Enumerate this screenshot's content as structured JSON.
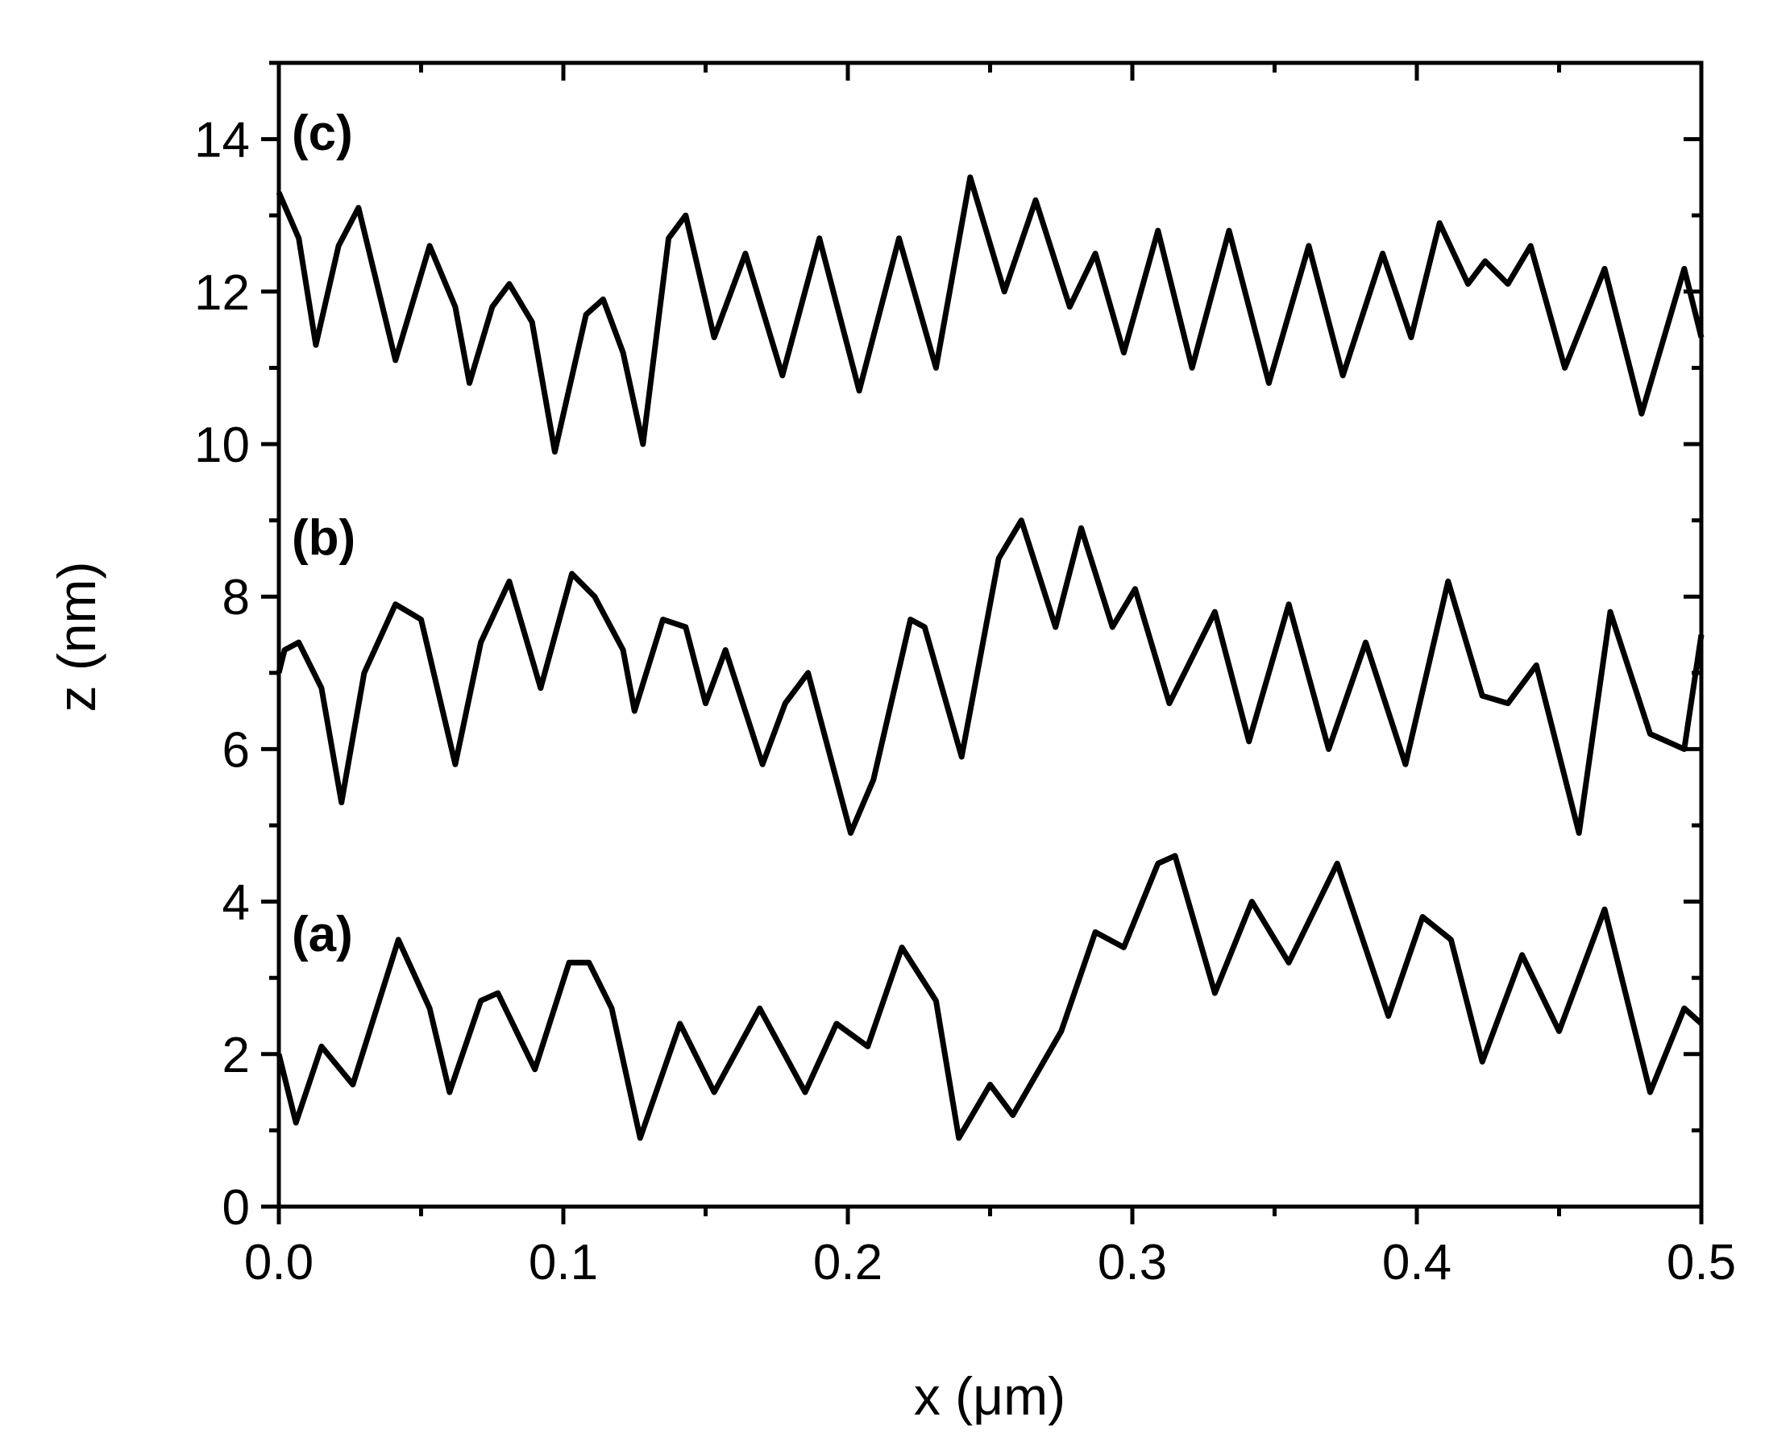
{
  "chart_data": {
    "type": "line",
    "xlabel": "x (μm)",
    "ylabel": "z (nm)",
    "xlim": [
      0,
      0.5
    ],
    "ylim": [
      0,
      15
    ],
    "xticks": [
      {
        "value": 0,
        "label": "0.0"
      },
      0.1,
      0.2,
      0.3,
      0.4,
      0.5
    ],
    "yticks": [
      0,
      2,
      4,
      6,
      8,
      10,
      12,
      14
    ],
    "xminorticks": [
      0.05,
      0.15,
      0.25,
      0.35,
      0.45
    ],
    "yminorticks": [
      1,
      3,
      5,
      7,
      9,
      11,
      13,
      15
    ],
    "series": [
      {
        "name": "(a)",
        "color": "#000000",
        "x": [
          0,
          0.006,
          0.015,
          0.026,
          0.042,
          0.053,
          0.06,
          0.071,
          0.077,
          0.09,
          0.102,
          0.109,
          0.117,
          0.127,
          0.141,
          0.153,
          0.169,
          0.185,
          0.196,
          0.207,
          0.219,
          0.231,
          0.239,
          0.25,
          0.258,
          0.275,
          0.287,
          0.297,
          0.309,
          0.315,
          0.329,
          0.342,
          0.355,
          0.372,
          0.39,
          0.402,
          0.412,
          0.423,
          0.437,
          0.45,
          0.466,
          0.482,
          0.494,
          0.5
        ],
        "values": [
          2.0,
          1.1,
          2.1,
          1.6,
          3.5,
          2.6,
          1.5,
          2.7,
          2.8,
          1.8,
          3.2,
          3.2,
          2.6,
          0.9,
          2.4,
          1.5,
          2.6,
          1.5,
          2.4,
          2.1,
          3.4,
          2.7,
          0.9,
          1.6,
          1.2,
          2.3,
          3.6,
          3.4,
          4.5,
          4.6,
          2.8,
          4.0,
          3.2,
          4.5,
          2.5,
          3.8,
          3.5,
          1.9,
          3.3,
          2.3,
          3.9,
          1.5,
          2.6,
          2.4
        ]
      },
      {
        "name": "(b)",
        "color": "#000000",
        "x": [
          0,
          0.002,
          0.007,
          0.015,
          0.022,
          0.03,
          0.041,
          0.05,
          0.062,
          0.071,
          0.081,
          0.092,
          0.103,
          0.111,
          0.121,
          0.125,
          0.135,
          0.143,
          0.15,
          0.157,
          0.17,
          0.178,
          0.186,
          0.201,
          0.209,
          0.222,
          0.227,
          0.24,
          0.253,
          0.261,
          0.273,
          0.282,
          0.293,
          0.301,
          0.313,
          0.329,
          0.341,
          0.355,
          0.369,
          0.382,
          0.396,
          0.411,
          0.423,
          0.432,
          0.442,
          0.457,
          0.468,
          0.482,
          0.494,
          0.5
        ],
        "values": [
          7.0,
          7.3,
          7.4,
          6.8,
          5.3,
          7.0,
          7.9,
          7.7,
          5.8,
          7.4,
          8.2,
          6.8,
          8.3,
          8.0,
          7.3,
          6.5,
          7.7,
          7.6,
          6.6,
          7.3,
          5.8,
          6.6,
          7.0,
          4.9,
          5.6,
          7.7,
          7.6,
          5.9,
          8.5,
          9.0,
          7.6,
          8.9,
          7.6,
          8.1,
          6.6,
          7.8,
          6.1,
          7.9,
          6.0,
          7.4,
          5.8,
          8.2,
          6.7,
          6.6,
          7.1,
          4.9,
          7.8,
          6.2,
          6.0,
          7.5
        ]
      },
      {
        "name": "(c)",
        "color": "#000000",
        "x": [
          0,
          0.007,
          0.013,
          0.021,
          0.028,
          0.041,
          0.053,
          0.062,
          0.067,
          0.075,
          0.081,
          0.089,
          0.097,
          0.108,
          0.114,
          0.121,
          0.128,
          0.137,
          0.143,
          0.153,
          0.164,
          0.177,
          0.19,
          0.204,
          0.218,
          0.231,
          0.243,
          0.255,
          0.266,
          0.278,
          0.287,
          0.297,
          0.309,
          0.321,
          0.334,
          0.348,
          0.362,
          0.374,
          0.388,
          0.398,
          0.408,
          0.418,
          0.424,
          0.432,
          0.44,
          0.452,
          0.466,
          0.479,
          0.494,
          0.5
        ],
        "values": [
          13.3,
          12.7,
          11.3,
          12.6,
          13.1,
          11.1,
          12.6,
          11.8,
          10.8,
          11.8,
          12.1,
          11.6,
          9.9,
          11.7,
          11.9,
          11.2,
          10.0,
          12.7,
          13.0,
          11.4,
          12.5,
          10.9,
          12.7,
          10.7,
          12.7,
          11.0,
          13.5,
          12.0,
          13.2,
          11.8,
          12.5,
          11.2,
          12.8,
          11.0,
          12.8,
          10.8,
          12.6,
          10.9,
          12.5,
          11.4,
          12.9,
          12.1,
          12.4,
          12.1,
          12.6,
          11.0,
          12.3,
          10.4,
          12.3,
          11.4
        ]
      }
    ]
  }
}
